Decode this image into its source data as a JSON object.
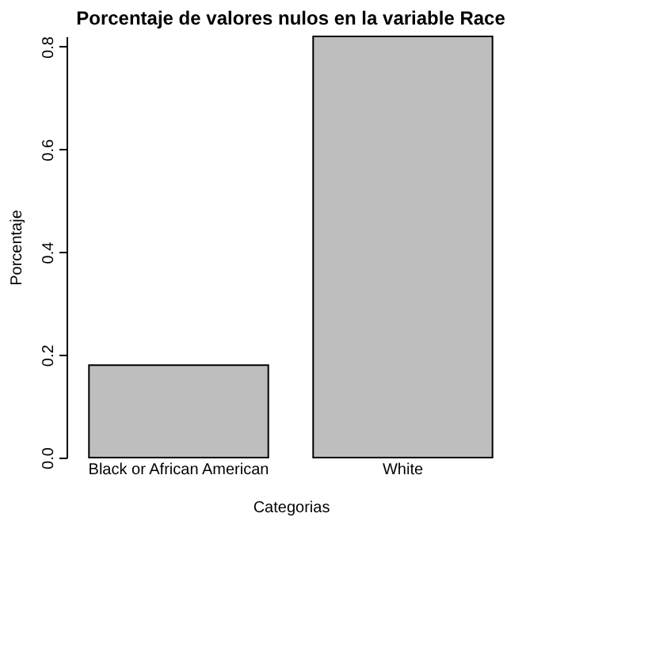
{
  "chart_data": {
    "type": "bar",
    "title": "Porcentaje de valores nulos en la variable Race",
    "xlabel": "Categorias",
    "ylabel": "Porcentaje",
    "categories": [
      "Black or African American",
      "White"
    ],
    "values": [
      0.18,
      0.82
    ],
    "color": "#bebebe",
    "ylim": [
      0,
      0.82
    ],
    "yticks": [
      {
        "value": 0,
        "label": "0.0"
      },
      {
        "value": 0.2,
        "label": "0.2"
      },
      {
        "value": 0.4,
        "label": "0.4"
      },
      {
        "value": 0.6,
        "label": "0.6"
      },
      {
        "value": 0.8,
        "label": "0.8"
      }
    ],
    "grid": false,
    "legend": false
  }
}
